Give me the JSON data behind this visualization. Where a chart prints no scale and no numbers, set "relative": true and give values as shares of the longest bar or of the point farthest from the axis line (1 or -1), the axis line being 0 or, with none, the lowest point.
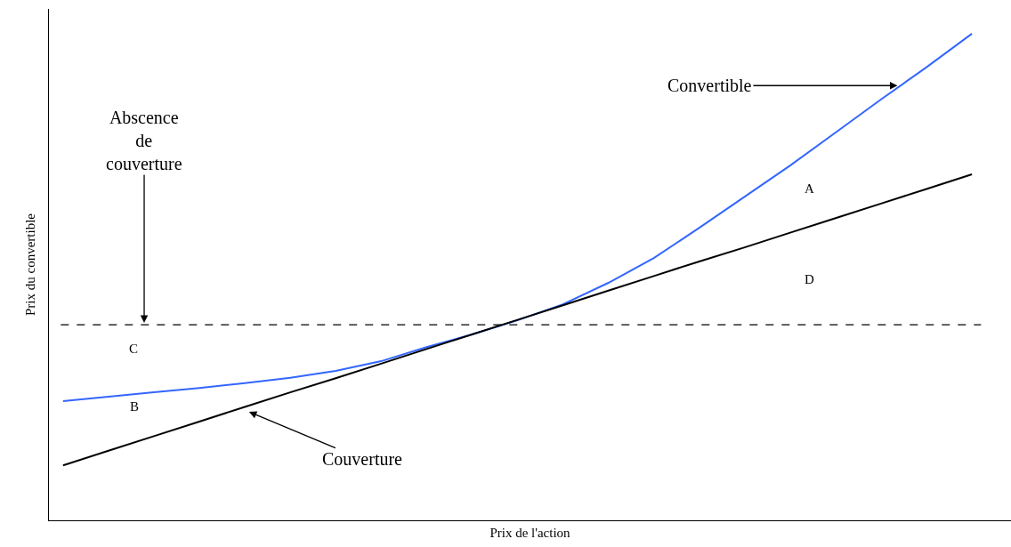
{
  "chart_data": {
    "type": "line",
    "relative": true,
    "xlabel": "Prix de l'action",
    "ylabel": "Prix du convertible",
    "categories": [
      null,
      null,
      null,
      null,
      null,
      null,
      null,
      null,
      null,
      null,
      null,
      null,
      null,
      null,
      null,
      null,
      null,
      null,
      null,
      null,
      null
    ],
    "series": [
      {
        "color": "#3366ff",
        "values": [
          0.245,
          0.254,
          0.263,
          0.272,
          0.282,
          0.293,
          0.307,
          0.327,
          0.356,
          0.382,
          0.411,
          0.444,
          0.488,
          0.539,
          0.601,
          0.665,
          0.729,
          0.797,
          0.865,
          0.931,
          1
        ]
      },
      {
        "color": "#000000",
        "values": [
          0.113,
          0.143,
          0.173,
          0.203,
          0.233,
          0.263,
          0.292,
          0.322,
          0.352,
          0.382,
          0.412,
          0.442,
          0.472,
          0.502,
          0.532,
          0.561,
          0.591,
          0.621,
          0.651,
          0.681,
          0.711
        ]
      }
    ],
    "ref_lines": [
      {
        "axis": "y",
        "value": 0.402,
        "color": "#000000",
        "line_style": "dashed"
      }
    ],
    "annotations": [
      "Convertible",
      "Abscence\nde\ncouverture",
      "Couverture",
      "A",
      "D",
      "C",
      "B"
    ],
    "tick_labels": false,
    "marker": "none",
    "line_style": "solid"
  }
}
